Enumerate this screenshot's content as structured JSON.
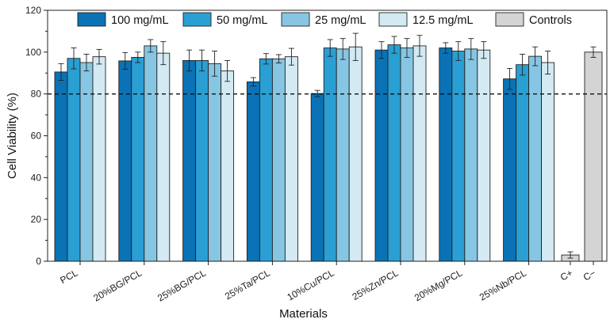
{
  "chart_data": {
    "type": "bar",
    "xlabel": "Materials",
    "ylabel": "Cell Viability (%)",
    "ylim": [
      0,
      120
    ],
    "yticks": [
      0,
      20,
      40,
      60,
      80,
      100,
      120
    ],
    "threshold": 80,
    "categories": [
      "PCL",
      "20%BG/PCL",
      "25%BG/PCL",
      "25%Ta/PCL",
      "10%Cu/PCL",
      "25%Zn/PCL",
      "20%Mg/PCL",
      "25%Nb/PCL"
    ],
    "series": [
      {
        "name": "100 mg/mL",
        "color": "#0a72b5",
        "values": [
          90.5,
          95.8,
          96.0,
          85.8,
          80.2,
          101.0,
          102.0,
          87.2
        ],
        "errors": [
          4.0,
          4.0,
          5.0,
          2.0,
          1.5,
          4.0,
          2.5,
          5.0
        ]
      },
      {
        "name": "50 mg/mL",
        "color": "#2a9fd3",
        "values": [
          97.0,
          97.5,
          96.0,
          96.8,
          102.0,
          103.5,
          100.5,
          94.0
        ],
        "errors": [
          5.0,
          2.5,
          5.0,
          2.5,
          4.0,
          4.0,
          4.5,
          5.0
        ]
      },
      {
        "name": "25 mg/mL",
        "color": "#86c6e3",
        "values": [
          95.0,
          103.0,
          94.5,
          96.8,
          101.5,
          102.0,
          101.5,
          98.0
        ],
        "errors": [
          4.0,
          3.0,
          6.0,
          2.0,
          5.0,
          4.5,
          5.0,
          4.5
        ]
      },
      {
        "name": "12.5 mg/mL",
        "color": "#d3eaf3",
        "values": [
          97.8,
          99.5,
          91.0,
          97.8,
          102.5,
          103.0,
          101.0,
          95.0
        ],
        "errors": [
          3.5,
          5.5,
          5.0,
          4.0,
          6.5,
          5.0,
          4.0,
          5.5
        ]
      }
    ],
    "controls": {
      "name": "Controls",
      "color": "#d4d4d4",
      "categories": [
        "C+",
        "C−"
      ],
      "values": [
        3.0,
        100.0
      ],
      "errors": [
        1.5,
        2.5
      ]
    }
  }
}
